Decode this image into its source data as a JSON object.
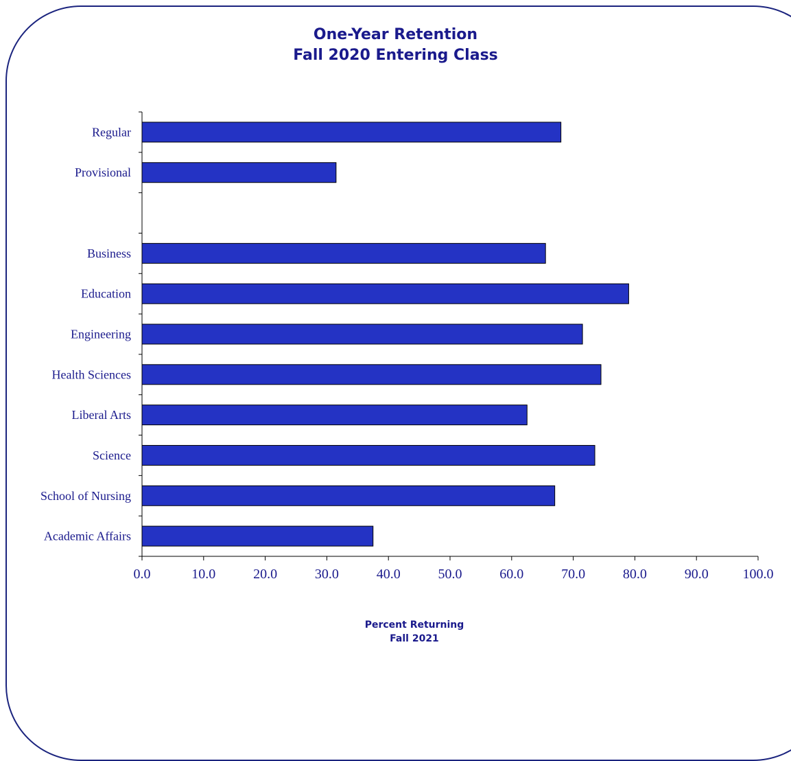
{
  "chart_data": {
    "type": "bar",
    "orientation": "horizontal",
    "title": [
      "One-Year Retention",
      "Fall 2020 Entering Class"
    ],
    "xlabel": [
      "Percent Returning",
      "Fall 2021"
    ],
    "ylabel": "",
    "categories": [
      "Regular",
      "Provisional",
      "",
      "Business",
      "Education",
      "Engineering",
      "Health Sciences",
      "Liberal Arts",
      "Science",
      "School of Nursing",
      "Academic Affairs"
    ],
    "values": [
      68.0,
      31.5,
      null,
      65.5,
      79.0,
      71.5,
      74.5,
      62.5,
      73.5,
      67.0,
      37.5
    ],
    "xlim": [
      0,
      100
    ],
    "xticks": [
      "0.0",
      "10.0",
      "20.0",
      "30.0",
      "40.0",
      "50.0",
      "60.0",
      "70.0",
      "80.0",
      "90.0",
      "100.0"
    ],
    "grid": false,
    "legend": "none",
    "bar_color": "#2433c4",
    "text_color": "#1a1a8c"
  }
}
